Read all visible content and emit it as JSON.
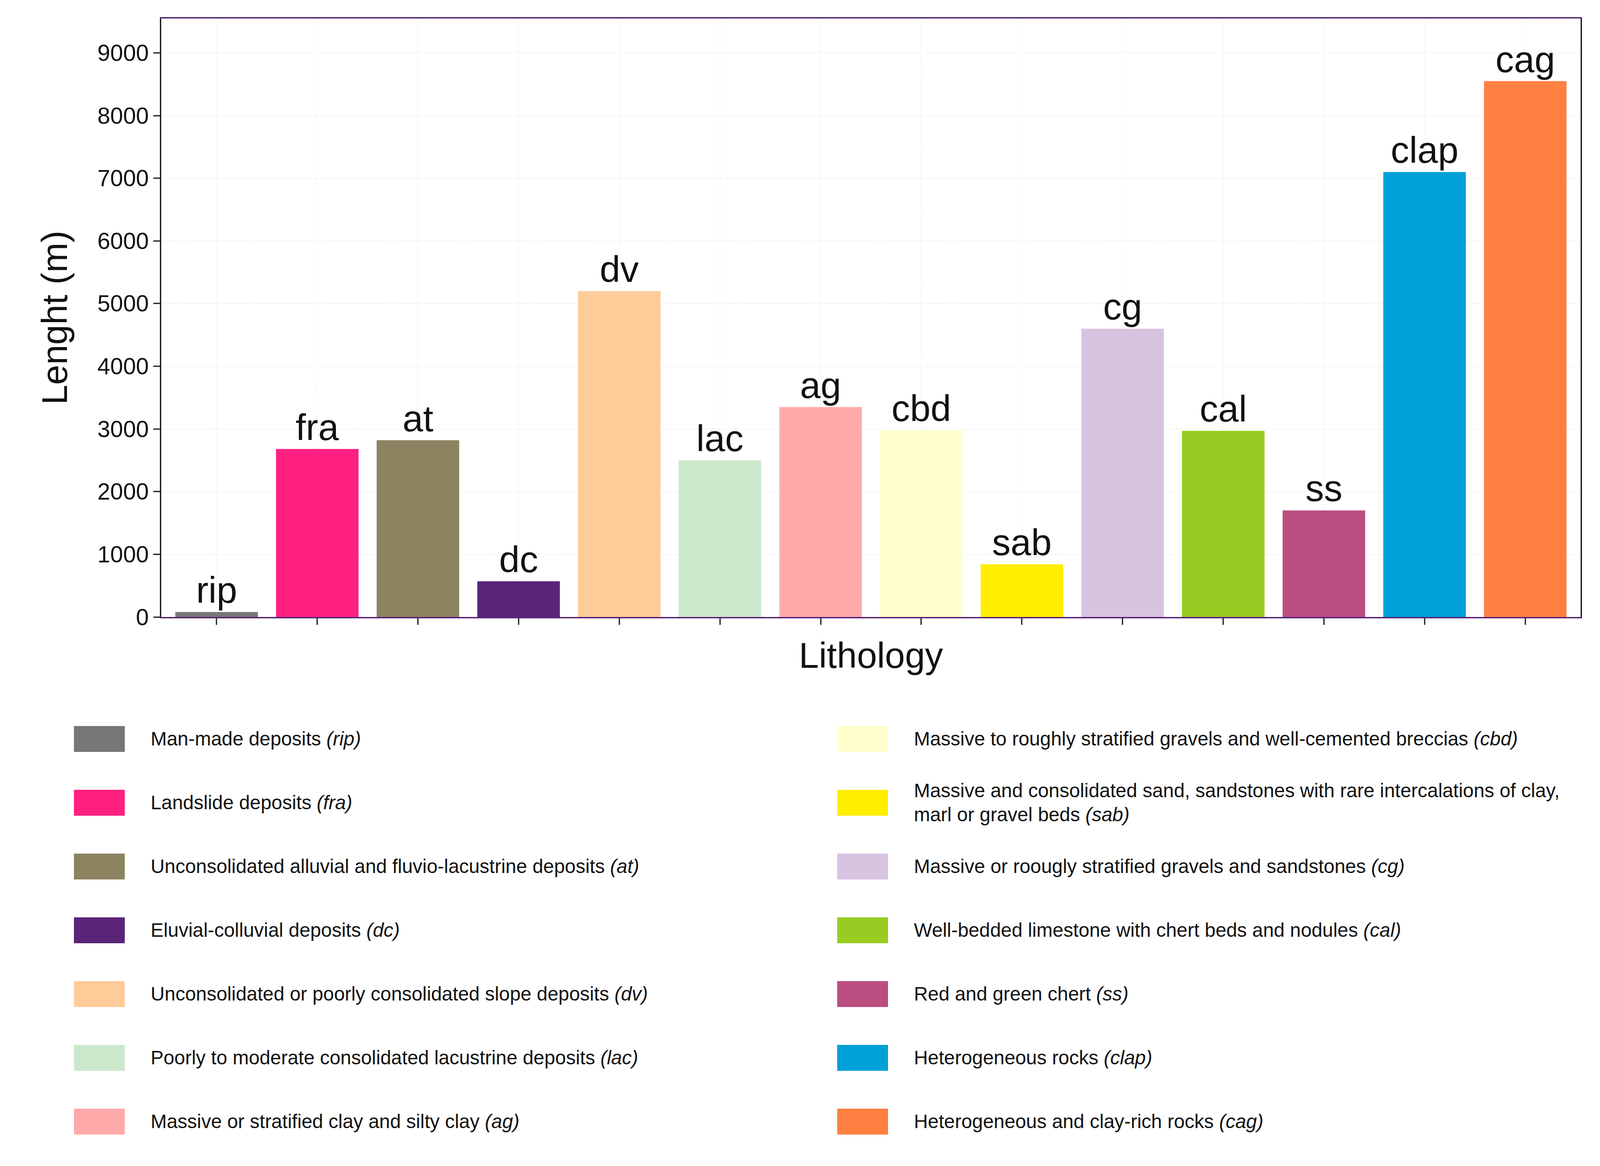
{
  "chart_data": {
    "type": "bar",
    "x_label": "Lithology",
    "y_label": "Lenght (m)",
    "categories": [
      "rip",
      "fra",
      "at",
      "dc",
      "dv",
      "lac",
      "ag",
      "cbd",
      "sab",
      "cg",
      "cal",
      "ss",
      "clap",
      "cag"
    ],
    "values": [
      80,
      2680,
      2820,
      570,
      5200,
      2500,
      3350,
      2980,
      840,
      4600,
      2970,
      1700,
      7100,
      8550
    ],
    "colors": [
      "#777777",
      "#ff2080",
      "#8c8460",
      "#5a2478",
      "#ffcc99",
      "#cce8cc",
      "#ffaaaa",
      "#ffffcc",
      "#ffee00",
      "#d8c4e0",
      "#99cc22",
      "#bb4d80",
      "#00a0d8",
      "#ff8040"
    ],
    "category_descriptions": [
      "Man-made deposits (rip)",
      "Landslide deposits (fra)",
      "Unconsolidated alluvial and fluvio-lacustrine deposits (at)",
      "Eluvial-colluvial deposits (dc)",
      "Unconsolidated or poorly consolidated slope deposits (dv)",
      "Poorly to moderate consolidated lacustrine deposits (lac)",
      "Massive or stratified clay and silty clay (ag)",
      "Massive to roughly stratified gravels and well-cemented breccias (cbd)",
      "Massive and consolidated sand, sandstones with rare intercalations of clay, marl or gravel beds (sab)",
      "Massive or roougly stratified gravels and sandstones (cg)",
      "Well-bedded limestone with chert beds and nodules (cal)",
      "Red and green chert (ss)",
      "Heterogeneous rocks (clap)",
      "Heterogeneous and clay-rich rocks (cag)"
    ],
    "ylim": [
      0,
      9550
    ],
    "yticks": [
      0,
      1000,
      2000,
      3000,
      4000,
      5000,
      6000,
      7000,
      8000,
      9000
    ],
    "grid": true,
    "tick_labels": "y"
  }
}
